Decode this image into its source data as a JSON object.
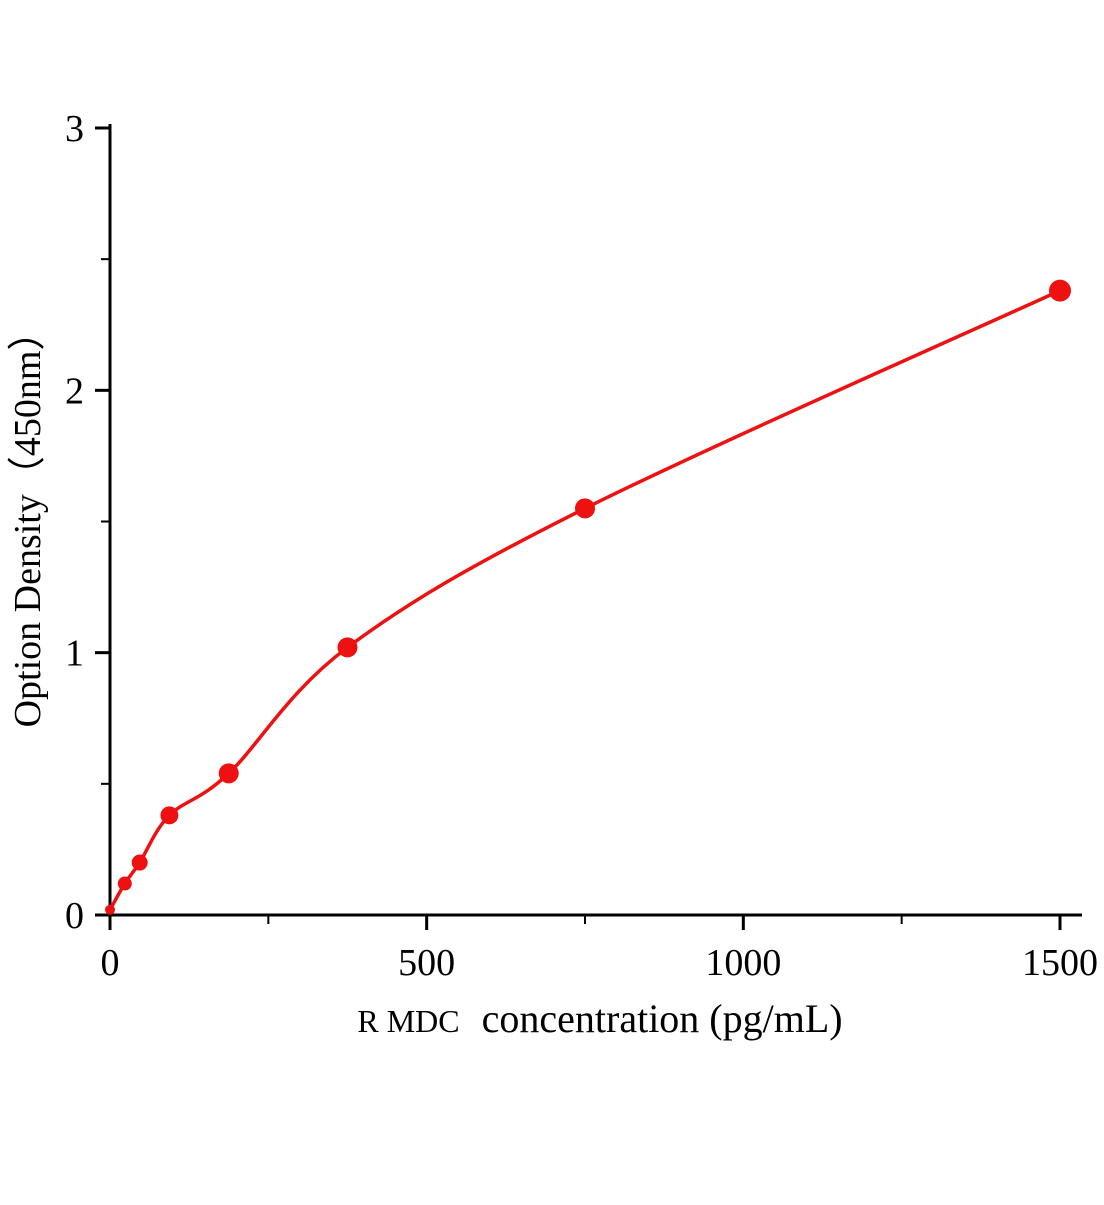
{
  "chart_data": {
    "type": "scatter",
    "title": "",
    "xlabel": "R MDC  concentration (pg/mL)",
    "xlabel_small": "R MDC",
    "xlabel_large": "concentration (pg/mL)",
    "ylabel": "Option Density（450nm）",
    "x": [
      0,
      23.4,
      46.9,
      93.8,
      187.5,
      375,
      750,
      1500
    ],
    "y": [
      0.02,
      0.12,
      0.2,
      0.38,
      0.54,
      1.02,
      1.55,
      2.38
    ],
    "marker_radii": [
      5,
      7,
      8,
      9,
      10,
      10,
      10,
      11
    ],
    "xlim": [
      0,
      1500
    ],
    "ylim": [
      0,
      3
    ],
    "x_ticks": [
      0,
      500,
      1000,
      1500
    ],
    "x_minor_ticks": [
      250,
      750,
      1250
    ],
    "y_ticks": [
      0,
      1,
      2,
      3
    ],
    "y_minor_ticks": [
      0.5,
      1.5,
      2.5
    ],
    "grid": "off",
    "legend": "none",
    "series_color": "#ee1111",
    "axis_color": "#000000",
    "curve_style": "smooth-fit-through-points"
  }
}
